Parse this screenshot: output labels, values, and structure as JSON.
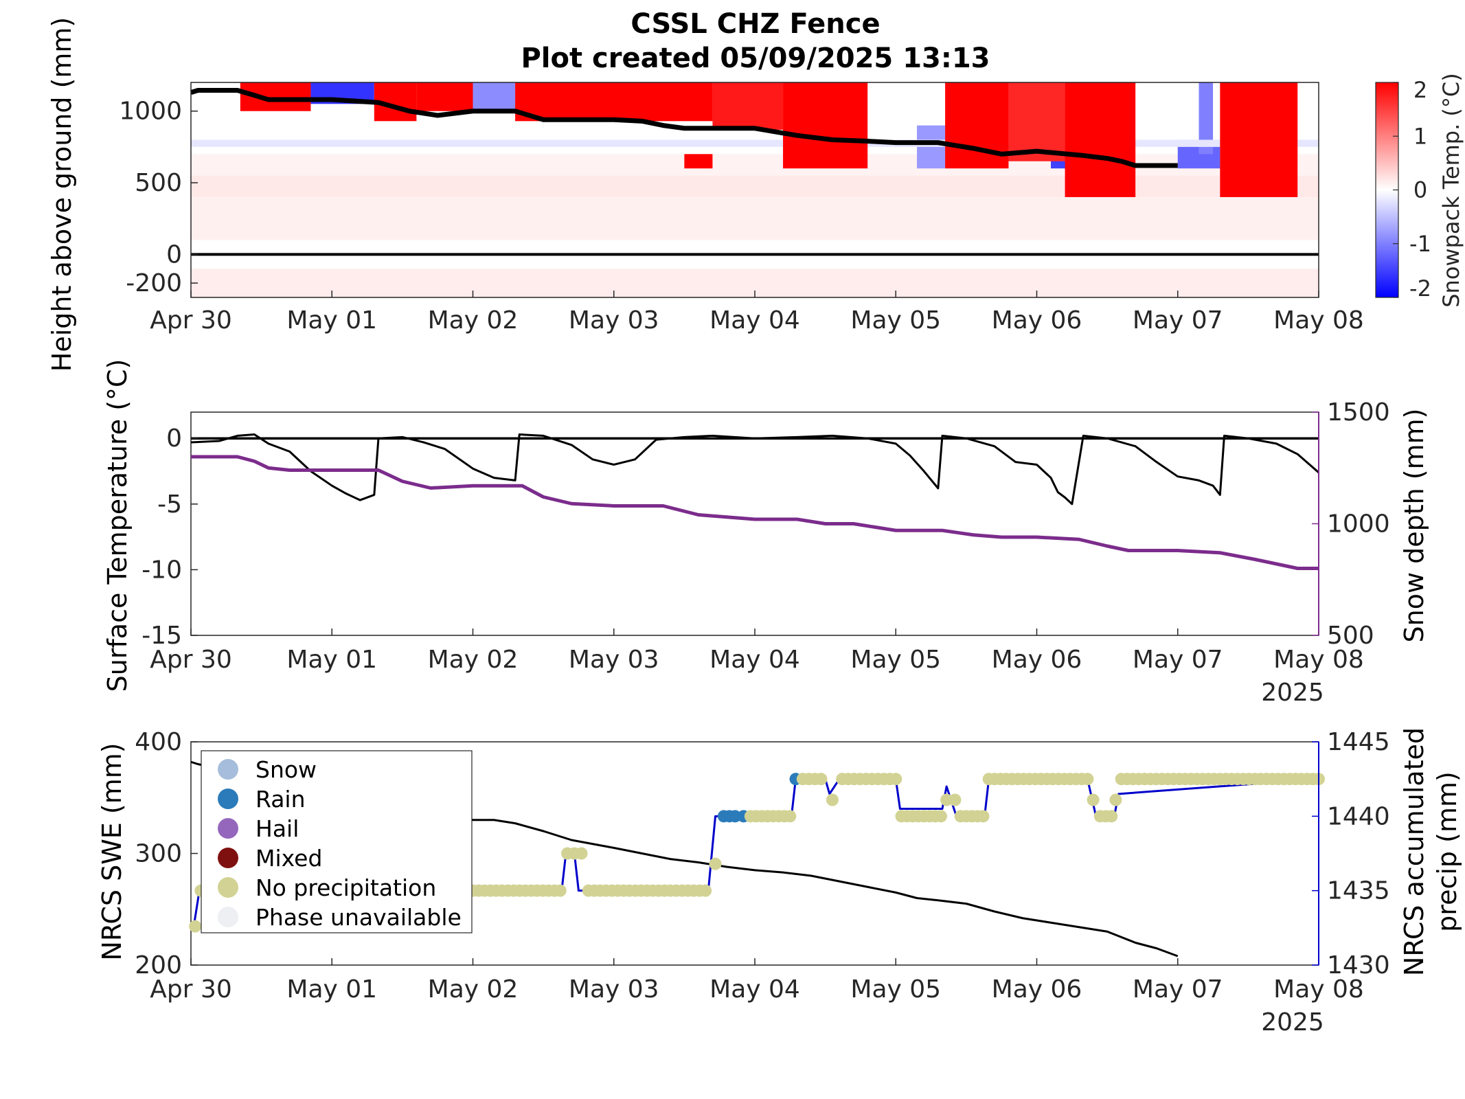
{
  "title_line1": "CSSL CHZ Fence",
  "title_line2": "Plot created 05/09/2025 13:13",
  "colors": {
    "warm": "#ff0000",
    "cold": "#0000ff",
    "snow_depth": "#7b2c8c",
    "precip": "#0000cc",
    "precip_label": "#0000ff",
    "snow_dot": "#a6bddb",
    "rain_dot": "#2b7bba",
    "hail_dot": "#9467bd",
    "mixed_dot": "#7f1010",
    "noprecip_dot": "#d2d294",
    "unavailable_dot": "#eeeff2"
  },
  "chart_data": [
    {
      "id": "snowpack-temperature",
      "type": "heatmap",
      "ylabel": "Height above ground (mm)",
      "x_ticks": [
        "Apr 30",
        "May 01",
        "May 02",
        "May 03",
        "May 04",
        "May 05",
        "May 06",
        "May 07",
        "May 08"
      ],
      "x_range": [
        0,
        8
      ],
      "y_ticks": [
        -200,
        0,
        500,
        1000
      ],
      "y_range": [
        -300,
        1200
      ],
      "colorbar": {
        "label": "Snowpack Temp. (°C)",
        "ticks": [
          -2,
          -1,
          0,
          1,
          2
        ],
        "range": [
          -2,
          2
        ]
      },
      "snow_surface": {
        "x": [
          0,
          0.05,
          0.33,
          0.45,
          0.55,
          0.8,
          1.0,
          1.33,
          1.55,
          1.75,
          2.0,
          2.3,
          2.5,
          2.8,
          3.0,
          3.2,
          3.35,
          3.5,
          3.8,
          4.0,
          4.3,
          4.55,
          4.8,
          5.0,
          5.3,
          5.55,
          5.75,
          6.0,
          6.33,
          6.5,
          6.6,
          6.7,
          7.0
        ],
        "y": [
          1130,
          1145,
          1145,
          1110,
          1080,
          1080,
          1080,
          1060,
          1000,
          970,
          1000,
          1000,
          940,
          940,
          940,
          930,
          900,
          880,
          880,
          880,
          830,
          800,
          790,
          780,
          780,
          740,
          700,
          720,
          690,
          670,
          650,
          620,
          620
        ]
      },
      "warm_blocks": [
        {
          "x": [
            0.35,
            0.85
          ],
          "y": [
            1000,
            1200
          ],
          "temp": 2
        },
        {
          "x": [
            1.3,
            1.6
          ],
          "y": [
            930,
            1200
          ],
          "temp": 2
        },
        {
          "x": [
            1.6,
            2.0
          ],
          "y": [
            1000,
            1200
          ],
          "temp": 2
        },
        {
          "x": [
            2.3,
            3.7
          ],
          "y": [
            930,
            1200
          ],
          "temp": 2
        },
        {
          "x": [
            3.7,
            4.2
          ],
          "y": [
            870,
            1200
          ],
          "temp": 1.8
        },
        {
          "x": [
            4.2,
            4.8
          ],
          "y": [
            800,
            1200
          ],
          "temp": 2
        },
        {
          "x": [
            4.2,
            4.8
          ],
          "y": [
            600,
            800
          ],
          "temp": 2
        },
        {
          "x": [
            3.5,
            3.7
          ],
          "y": [
            600,
            700
          ],
          "temp": 2
        },
        {
          "x": [
            5.35,
            5.8
          ],
          "y": [
            600,
            1200
          ],
          "temp": 2
        },
        {
          "x": [
            6.2,
            6.7
          ],
          "y": [
            400,
            1200
          ],
          "temp": 2
        },
        {
          "x": [
            5.8,
            6.2
          ],
          "y": [
            650,
            1200
          ],
          "temp": 1.7
        },
        {
          "x": [
            7.3,
            7.85
          ],
          "y": [
            400,
            1200
          ],
          "temp": 2
        }
      ],
      "cold_blocks": [
        {
          "x": [
            0.85,
            1.3
          ],
          "y": [
            1050,
            1200
          ],
          "temp": -1.6
        },
        {
          "x": [
            2.0,
            2.3
          ],
          "y": [
            1000,
            1200
          ],
          "temp": -0.9
        },
        {
          "x": [
            5.15,
            5.35
          ],
          "y": [
            600,
            900
          ],
          "temp": -0.8
        },
        {
          "x": [
            6.1,
            6.25
          ],
          "y": [
            600,
            700
          ],
          "temp": -1.5
        },
        {
          "x": [
            7.0,
            7.3
          ],
          "y": [
            600,
            800
          ],
          "temp": -1.2
        },
        {
          "x": [
            7.15,
            7.25
          ],
          "y": [
            700,
            1200
          ],
          "temp": -1.0
        },
        {
          "x": [
            0,
            8
          ],
          "y": [
            750,
            800
          ],
          "temp": -0.2
        }
      ]
    },
    {
      "id": "surface-temperature",
      "type": "line",
      "ylabel": "Surface Temperature (°C)",
      "y2label": "Snow depth (mm)",
      "x_ticks": [
        "Apr 30",
        "May 01",
        "May 02",
        "May 03",
        "May 04",
        "May 05",
        "May 06",
        "May 07",
        "May 08"
      ],
      "x_year": "2025",
      "x_range": [
        0,
        8
      ],
      "y_ticks": [
        -15,
        -10,
        -5,
        0
      ],
      "y_range": [
        -15,
        2
      ],
      "y2_ticks": [
        500,
        1000,
        1500
      ],
      "y2_range": [
        500,
        1500
      ],
      "series": [
        {
          "axis": "left",
          "x": [
            0,
            0.2,
            0.33,
            0.45,
            0.55,
            0.7,
            0.85,
            1.0,
            1.1,
            1.2,
            1.3,
            1.33,
            1.5,
            1.65,
            1.8,
            2.0,
            2.15,
            2.3,
            2.33,
            2.5,
            2.7,
            2.85,
            3.0,
            3.15,
            3.3,
            3.5,
            3.7,
            4.0,
            4.3,
            4.55,
            4.8,
            5.0,
            5.1,
            5.2,
            5.3,
            5.33,
            5.5,
            5.7,
            5.85,
            6.0,
            6.1,
            6.15,
            6.2,
            6.25,
            6.33,
            6.5,
            6.7,
            6.85,
            7.0,
            7.15,
            7.25,
            7.3,
            7.33,
            7.5,
            7.7,
            7.85,
            8.0
          ],
          "y": [
            -0.3,
            -0.2,
            0.2,
            0.3,
            -0.4,
            -1.0,
            -2.5,
            -3.6,
            -4.2,
            -4.7,
            -4.3,
            0.0,
            0.1,
            -0.3,
            -0.8,
            -2.3,
            -3.0,
            -3.2,
            0.3,
            0.2,
            -0.5,
            -1.6,
            -2.0,
            -1.6,
            -0.1,
            0.1,
            0.2,
            0.0,
            0.1,
            0.2,
            0.0,
            -0.4,
            -1.3,
            -2.5,
            -3.8,
            0.2,
            0.0,
            -0.6,
            -1.8,
            -2.0,
            -3.0,
            -4.1,
            -4.5,
            -5.0,
            0.2,
            0.0,
            -0.6,
            -1.8,
            -2.9,
            -3.2,
            -3.6,
            -4.3,
            0.2,
            0.0,
            -0.4,
            -1.2,
            -2.6
          ]
        },
        {
          "axis": "right",
          "name": "Snow depth (mm)",
          "x": [
            0,
            0.33,
            0.45,
            0.55,
            0.7,
            1.0,
            1.33,
            1.5,
            1.7,
            2.0,
            2.2,
            2.35,
            2.5,
            2.7,
            3.0,
            3.35,
            3.6,
            4.0,
            4.3,
            4.5,
            4.7,
            5.0,
            5.33,
            5.55,
            5.75,
            6.0,
            6.3,
            6.5,
            6.65,
            6.8,
            7.0,
            7.3,
            7.55,
            7.7,
            7.85,
            8.0
          ],
          "y": [
            1300,
            1300,
            1280,
            1250,
            1240,
            1240,
            1240,
            1190,
            1160,
            1170,
            1170,
            1170,
            1120,
            1090,
            1080,
            1080,
            1040,
            1020,
            1020,
            1000,
            1000,
            970,
            970,
            950,
            940,
            940,
            930,
            900,
            880,
            880,
            880,
            870,
            840,
            820,
            800,
            800
          ]
        }
      ]
    },
    {
      "id": "nrcs-swe",
      "type": "line",
      "ylabel": "NRCS SWE (mm)",
      "y2label_line1": "NRCS accumulated",
      "y2label_line2": "precip (mm)",
      "x_ticks": [
        "Apr 30",
        "May 01",
        "May 02",
        "May 03",
        "May 04",
        "May 05",
        "May 06",
        "May 07",
        "May 08"
      ],
      "x_year": "2025",
      "x_range": [
        0,
        8
      ],
      "y_ticks": [
        200,
        300,
        400
      ],
      "y_range": [
        200,
        400
      ],
      "y2_ticks": [
        1430,
        1435,
        1440,
        1445
      ],
      "y2_range": [
        1430,
        1445
      ],
      "legend": [
        {
          "label": "Snow",
          "color_key": "snow_dot"
        },
        {
          "label": "Rain",
          "color_key": "rain_dot"
        },
        {
          "label": "Hail",
          "color_key": "hail_dot"
        },
        {
          "label": "Mixed",
          "color_key": "mixed_dot"
        },
        {
          "label": "No precipitation",
          "color_key": "noprecip_dot"
        },
        {
          "label": "Phase unavailable",
          "color_key": "unavailable_dot"
        }
      ],
      "legend_position": "top-left",
      "swe": {
        "x": [
          0,
          0.05,
          2.0,
          2.15,
          2.3,
          2.5,
          2.7,
          3.0,
          3.2,
          3.4,
          3.6,
          3.8,
          4.0,
          4.2,
          4.4,
          4.6,
          4.8,
          5.0,
          5.15,
          5.3,
          5.5,
          5.7,
          5.9,
          6.1,
          6.3,
          6.5,
          6.7,
          6.85,
          7.0
        ],
        "y": [
          382,
          380,
          330,
          330,
          327,
          320,
          312,
          305,
          300,
          295,
          292,
          288,
          285,
          283,
          280,
          275,
          270,
          265,
          260,
          258,
          255,
          248,
          242,
          238,
          234,
          230,
          220,
          215,
          208
        ]
      },
      "precip_line": {
        "x": [
          0.02,
          0.06,
          2.63,
          2.66,
          2.72,
          2.75,
          3.67,
          3.72,
          3.9,
          4.26,
          4.29,
          4.5,
          4.53,
          4.6,
          5.0,
          5.03,
          5.33,
          5.36,
          5.43,
          5.63,
          5.66,
          6.36,
          6.42,
          6.55,
          6.58,
          8.0
        ],
        "y": [
          1432.6,
          1435.0,
          1435.0,
          1437.5,
          1437.5,
          1435.0,
          1435.0,
          1440.0,
          1440.0,
          1440.0,
          1442.5,
          1442.5,
          1441.5,
          1442.5,
          1442.5,
          1440.5,
          1440.5,
          1442.0,
          1440.0,
          1440.0,
          1442.5,
          1442.5,
          1440.0,
          1440.0,
          1441.5,
          1442.5
        ]
      },
      "precip_dots": [
        {
          "x0": 0.03,
          "x1": 0.03,
          "y": 1432.6,
          "phase": "noprecip_dot"
        },
        {
          "x0": 0.07,
          "x1": 0.07,
          "y": 1435.0,
          "phase": "noprecip_dot"
        },
        {
          "x0": 2.0,
          "x1": 2.62,
          "y": 1435.0,
          "phase": "noprecip_dot"
        },
        {
          "x0": 2.67,
          "x1": 2.77,
          "y": 1437.5,
          "phase": "noprecip_dot"
        },
        {
          "x0": 2.82,
          "x1": 3.65,
          "y": 1435.0,
          "phase": "noprecip_dot"
        },
        {
          "x0": 3.72,
          "x1": 3.72,
          "y": 1436.8,
          "phase": "noprecip_dot"
        },
        {
          "x0": 3.78,
          "x1": 3.86,
          "y": 1440.0,
          "phase": "rain_dot"
        },
        {
          "x0": 3.92,
          "x1": 3.92,
          "y": 1440.0,
          "phase": "rain_dot"
        },
        {
          "x0": 3.97,
          "x1": 4.25,
          "y": 1440.0,
          "phase": "noprecip_dot"
        },
        {
          "x0": 4.29,
          "x1": 4.29,
          "y": 1442.5,
          "phase": "rain_dot"
        },
        {
          "x0": 4.34,
          "x1": 4.47,
          "y": 1442.5,
          "phase": "noprecip_dot"
        },
        {
          "x0": 4.55,
          "x1": 4.55,
          "y": 1441.1,
          "phase": "noprecip_dot"
        },
        {
          "x0": 4.62,
          "x1": 5.0,
          "y": 1442.5,
          "phase": "noprecip_dot"
        },
        {
          "x0": 5.04,
          "x1": 5.32,
          "y": 1440.0,
          "phase": "noprecip_dot"
        },
        {
          "x0": 5.36,
          "x1": 5.42,
          "y": 1441.1,
          "phase": "noprecip_dot"
        },
        {
          "x0": 5.46,
          "x1": 5.62,
          "y": 1440.0,
          "phase": "noprecip_dot"
        },
        {
          "x0": 5.66,
          "x1": 6.36,
          "y": 1442.5,
          "phase": "noprecip_dot"
        },
        {
          "x0": 6.4,
          "x1": 6.4,
          "y": 1441.1,
          "phase": "noprecip_dot"
        },
        {
          "x0": 6.45,
          "x1": 6.53,
          "y": 1440.0,
          "phase": "noprecip_dot"
        },
        {
          "x0": 6.56,
          "x1": 6.56,
          "y": 1441.1,
          "phase": "noprecip_dot"
        },
        {
          "x0": 6.6,
          "x1": 8.0,
          "y": 1442.5,
          "phase": "noprecip_dot"
        }
      ]
    }
  ]
}
